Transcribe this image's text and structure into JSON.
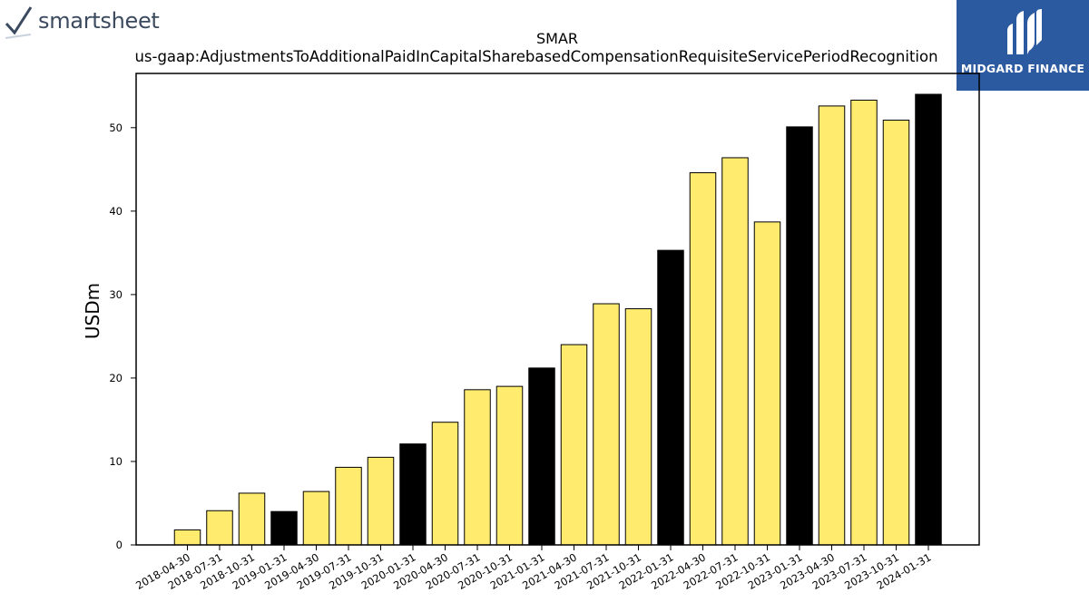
{
  "logos": {
    "left": {
      "text": "smartsheet",
      "icon": "checkmark-icon"
    },
    "right": {
      "text": "MIDGARD FINANCE",
      "icon": "midgard-m-icon"
    }
  },
  "colors": {
    "bar_default": "#ffec6e",
    "bar_highlight": "#000000",
    "logo_right_bg": "#2c5aa0",
    "logo_left_text": "#3b4a5e"
  },
  "chart_data": {
    "type": "bar",
    "title": "SMAR",
    "subtitle": "us-gaap:AdjustmentsToAdditionalPaidInCapitalSharebasedCompensationRequisiteServicePeriodRecognition",
    "xlabel": "",
    "ylabel": "USDm",
    "ylim": [
      0,
      56.5
    ],
    "yticks": [
      0,
      10,
      20,
      30,
      40,
      50
    ],
    "grid": false,
    "categories": [
      "2018-04-30",
      "2018-07-31",
      "2018-10-31",
      "2019-01-31",
      "2019-04-30",
      "2019-07-31",
      "2019-10-31",
      "2020-01-31",
      "2020-04-30",
      "2020-07-31",
      "2020-10-31",
      "2021-01-31",
      "2021-04-30",
      "2021-07-31",
      "2021-10-31",
      "2022-01-31",
      "2022-04-30",
      "2022-07-31",
      "2022-10-31",
      "2023-01-31",
      "2023-04-30",
      "2023-07-31",
      "2023-10-31",
      "2024-01-31"
    ],
    "values": [
      1.8,
      4.1,
      6.2,
      4.0,
      6.4,
      9.3,
      10.5,
      12.1,
      14.7,
      18.6,
      19.0,
      21.2,
      24.0,
      28.9,
      28.3,
      35.3,
      44.6,
      46.4,
      38.7,
      50.1,
      52.6,
      53.3,
      50.9,
      54.0
    ],
    "highlight": [
      false,
      false,
      false,
      true,
      false,
      false,
      false,
      true,
      false,
      false,
      false,
      true,
      false,
      false,
      false,
      true,
      false,
      false,
      false,
      true,
      false,
      false,
      false,
      true
    ]
  }
}
